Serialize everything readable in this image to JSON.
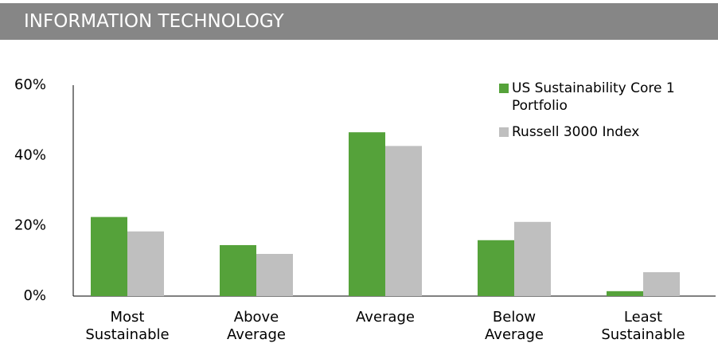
{
  "chart_data": {
    "type": "bar",
    "header": "INFORMATION TECHNOLOGY",
    "categories": [
      "Most Sustainable",
      "Above Average",
      "Average",
      "Below Average",
      "Least Sustainable"
    ],
    "series": [
      {
        "name": "US Sustainability Core 1 Portfolio",
        "color": "#55a23a",
        "values": [
          22.5,
          14.5,
          46.6,
          15.9,
          1.4
        ]
      },
      {
        "name": "Russell 3000 Index",
        "color": "#bfbfbf",
        "values": [
          18.4,
          12.0,
          42.7,
          21.1,
          6.8
        ]
      }
    ],
    "ylim": [
      0,
      60
    ],
    "yticks": [
      {
        "value": 0,
        "label": "0%"
      },
      {
        "value": 20,
        "label": "20%"
      },
      {
        "value": 40,
        "label": "40%"
      },
      {
        "value": 60,
        "label": "60%"
      }
    ],
    "grid": false,
    "legend": "top-right"
  }
}
